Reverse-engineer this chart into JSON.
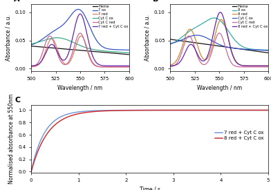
{
  "panel_A": {
    "title": "A",
    "legend": [
      "Heme",
      "7 ox",
      "7 red",
      "Cyt C ox",
      "Cyt C red",
      "7 red + Cyt C ox"
    ],
    "colors": [
      "#111111",
      "#3355cc",
      "#e08060",
      "#3aaa88",
      "#cc6699",
      "#6622aa"
    ],
    "xlabel": "Wavelength / nm",
    "ylabel": "Absorbance / a.u.",
    "xlim": [
      500,
      600
    ],
    "ylim": [
      -0.005,
      0.115
    ],
    "yticks": [
      0.0,
      0.05,
      0.1
    ],
    "xticks": [
      500,
      525,
      550,
      575,
      600
    ]
  },
  "panel_B": {
    "title": "B",
    "legend": [
      "Heme",
      "8 ox",
      "8 red",
      "Cyt C ox",
      "Cyt C red",
      "8 red + Cyt C ox"
    ],
    "colors": [
      "#111111",
      "#33aaaa",
      "#cc8833",
      "#3355cc",
      "#cc6699",
      "#6622aa"
    ],
    "xlabel": "Wavelength / nm",
    "ylabel": "Absorbance / a.u.",
    "xlim": [
      500,
      600
    ],
    "ylim": [
      -0.005,
      0.115
    ],
    "yticks": [
      0.0,
      0.05,
      0.1
    ],
    "xticks": [
      500,
      525,
      550,
      575,
      600
    ]
  },
  "panel_C": {
    "title": "C",
    "legend": [
      "7 red + Cyt C ox",
      "8 red + Cyt C ox"
    ],
    "colors": [
      "#7799dd",
      "#cc3333"
    ],
    "xlabel": "Time / s",
    "ylabel": "Normalised absorbance at 550nm",
    "xlim": [
      0,
      5
    ],
    "ylim": [
      -0.02,
      1.08
    ],
    "yticks": [
      0.0,
      0.2,
      0.4,
      0.6,
      0.8,
      1.0
    ],
    "xticks": [
      0,
      1,
      2,
      3,
      4,
      5
    ]
  }
}
